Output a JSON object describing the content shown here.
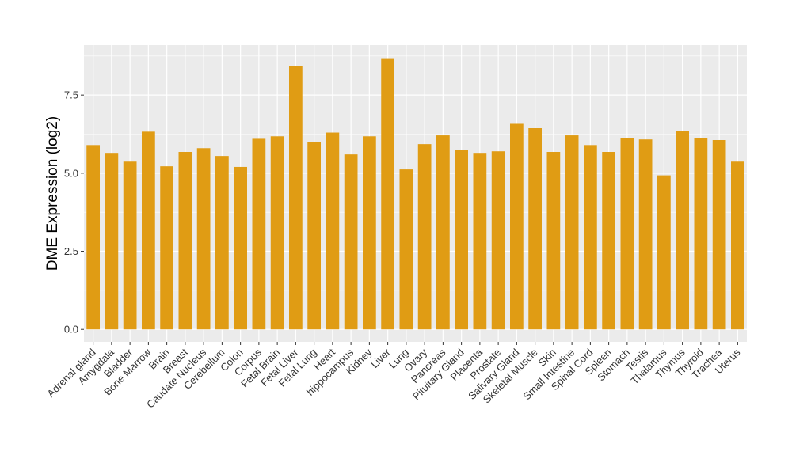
{
  "chart_data": {
    "type": "bar",
    "title": "",
    "xlabel": "",
    "ylabel": "DME Expression (log2)",
    "ylim": [
      -0.4,
      9.1
    ],
    "yticks": [
      0.0,
      2.5,
      5.0,
      7.5
    ],
    "ytick_labels": [
      "0.0",
      "2.5",
      "5.0",
      "7.5"
    ],
    "grid": true,
    "legend": "none",
    "colors": {
      "bar": "#E09C14",
      "panel": "#EBEBEB",
      "grid": "#FFFFFF"
    },
    "categories": [
      "Adrenal gland",
      "Amygdala",
      "Bladder",
      "Bone Marrow",
      "Brain",
      "Breast",
      "Caudate Nucleus",
      "Cerebellum",
      "Colon",
      "Corpus",
      "Fetal Brain",
      "Fetal Liver",
      "Fetal Lung",
      "Heart",
      "hippocampus",
      "Kidney",
      "Liver",
      "Lung",
      "Ovary",
      "Pancreas",
      "Pituitary Gland",
      "Placenta",
      "Prostate",
      "Salivary Gland",
      "Skeletal Muscle",
      "Skin",
      "Small Intestine",
      "Spinal Cord",
      "Spleen",
      "Stomach",
      "Testis",
      "Thalamus",
      "Thymus",
      "Thyroid",
      "Trachea",
      "Uterus"
    ],
    "values": [
      5.9,
      5.65,
      5.37,
      6.33,
      5.22,
      5.68,
      5.8,
      5.55,
      5.2,
      6.1,
      6.18,
      8.43,
      6.0,
      6.3,
      5.6,
      6.18,
      8.68,
      5.12,
      5.93,
      6.21,
      5.75,
      5.65,
      5.7,
      6.58,
      6.44,
      5.68,
      6.21,
      5.9,
      5.68,
      6.13,
      6.08,
      4.93,
      6.36,
      6.13,
      6.06,
      5.37
    ]
  }
}
